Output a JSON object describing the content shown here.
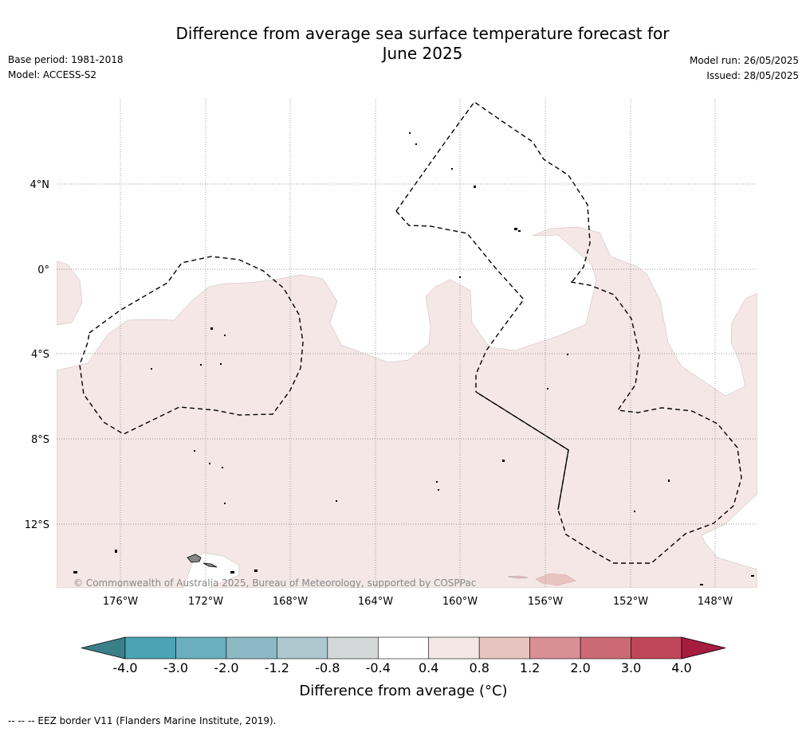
{
  "header": {
    "title_line1": "Difference from average sea surface temperature forecast for",
    "title_line2": "June 2025",
    "base_period": "Base period: 1981-2018",
    "model": "Model: ACCESS-S2",
    "model_run": "Model run: 26/05/2025",
    "issued": "Issued: 28/05/2025"
  },
  "map": {
    "copyright": "© Commonwealth of Australia 2025, Bureau of Meteorology, supported by COSPPac",
    "lat_labels": [
      "4°N",
      "0°",
      "4°S",
      "8°S",
      "12°S"
    ],
    "lon_labels": [
      "176°W",
      "172°W",
      "168°W",
      "164°W",
      "160°W",
      "156°W",
      "152°W",
      "148°W"
    ],
    "anomaly_fill_color": "#f4e7e6"
  },
  "colorbar": {
    "label": "Difference from average (°C)",
    "ticks": [
      "-4.0",
      "-3.0",
      "-2.0",
      "-1.2",
      "-0.8",
      "-0.4",
      "0.4",
      "0.8",
      "1.2",
      "2.0",
      "3.0",
      "4.0"
    ],
    "colors": [
      "#3b7f8a",
      "#4aa4b4",
      "#6aafbd",
      "#8db9c4",
      "#acc8ce",
      "#d5d8d9",
      "#ffffff",
      "#f4e7e6",
      "#e8c4c0",
      "#d98f96",
      "#cc6a74",
      "#c0465a",
      "#a61c3c"
    ]
  },
  "footer": {
    "legend": "--  --  -- EEZ border V11 (Flanders Marine Institute, 2019)."
  }
}
